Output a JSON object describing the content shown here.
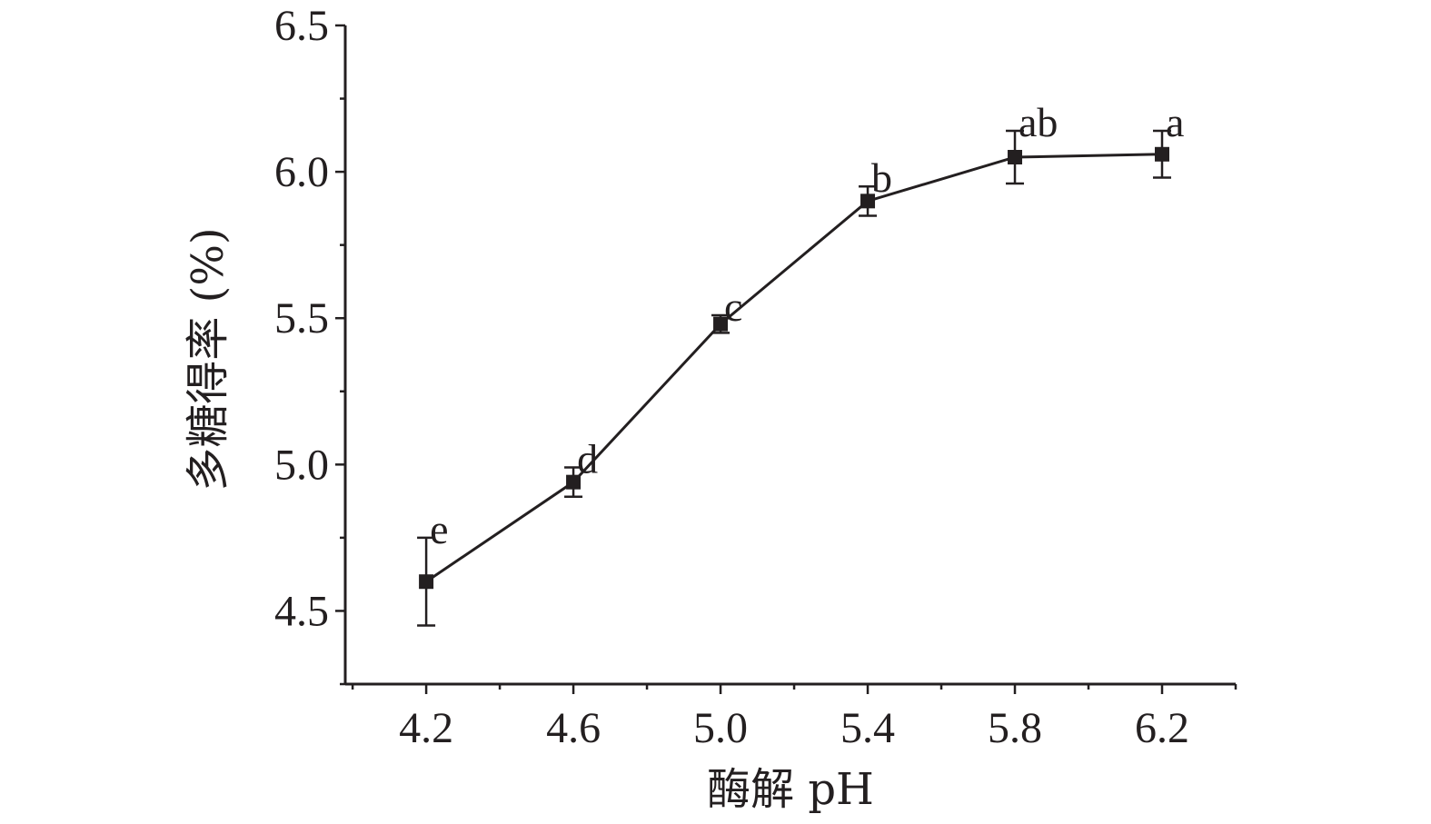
{
  "chart_data": {
    "type": "line",
    "xlabel": "酶解 pH",
    "ylabel": "多糖得率 (%)",
    "xlim": [
      3.98,
      6.4
    ],
    "ylim": [
      4.25,
      6.5
    ],
    "x_ticks": [
      "4.2",
      "4.6",
      "5.0",
      "5.4",
      "5.8",
      "6.2"
    ],
    "y_ticks": [
      "4.5",
      "5.0",
      "5.5",
      "6.0",
      "6.5"
    ],
    "grid": false,
    "legend": "none",
    "series": [
      {
        "x": [
          4.2,
          4.6,
          5.0,
          5.4,
          5.8,
          6.2
        ],
        "y": [
          4.6,
          4.94,
          5.48,
          5.9,
          6.05,
          6.06
        ],
        "error": [
          0.15,
          0.05,
          0.03,
          0.05,
          0.09,
          0.08
        ],
        "labels": [
          "e",
          "d",
          "c",
          "b",
          "ab",
          "a"
        ],
        "marker": "square",
        "color": "#231f20"
      }
    ]
  }
}
